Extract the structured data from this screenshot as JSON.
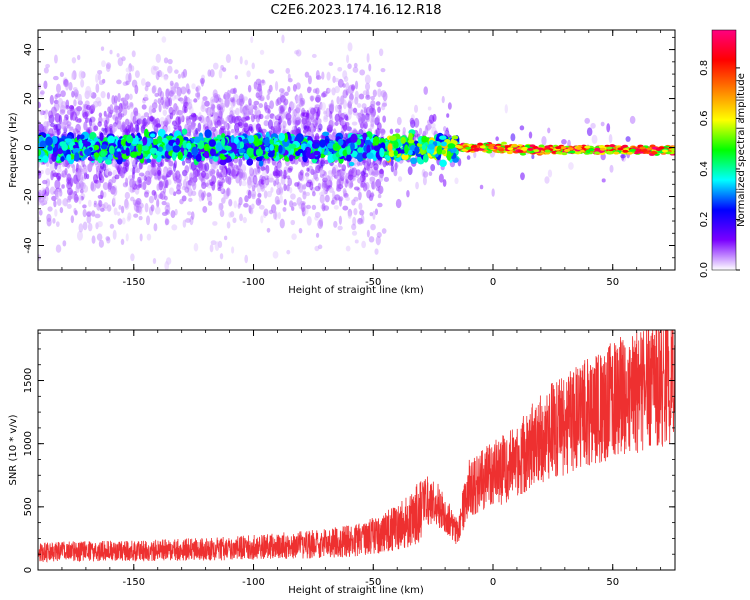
{
  "title": "C2E6.2023.174.16.12.R18",
  "chart_data": [
    {
      "type": "heatmap",
      "xlabel": "Height of straight line (km)",
      "ylabel": "Frequency (Hz)",
      "xlim": [
        -190,
        76
      ],
      "ylim": [
        -50,
        48
      ],
      "xticks": [
        -150,
        -100,
        -50,
        0,
        50
      ],
      "yticks": [
        -40,
        -20,
        0,
        20,
        40
      ],
      "grid": false,
      "colorbar": {
        "label": "Normalized spectral amplitude",
        "ticks": [
          0.0,
          0.2,
          0.4,
          0.6,
          0.8
        ],
        "range": [
          0,
          0.95
        ],
        "colormap": [
          "#ffffff",
          "#7a00ff",
          "#0000ff",
          "#00ffff",
          "#00ff00",
          "#ffff00",
          "#ff8000",
          "#ff0000",
          "#ff0080"
        ]
      },
      "description_series": [
        {
          "name": "",
          "x": [
            -190,
            -150,
            -100,
            -50,
            -20,
            0,
            20,
            50,
            76
          ],
          "band_center_hz": [
            0,
            0,
            0,
            0,
            0,
            0,
            -1,
            -1,
            -1
          ]
        }
      ]
    },
    {
      "type": "line",
      "xlabel": "Height of straight line (km)",
      "ylabel": "SNR (10 * v/v)",
      "xlim": [
        -190,
        76
      ],
      "ylim": [
        0,
        1900
      ],
      "xticks": [
        -150,
        -100,
        -50,
        0,
        50
      ],
      "yticks": [
        0,
        500,
        1000,
        1500
      ],
      "grid": false,
      "color": "#ee3030",
      "series": [
        {
          "name": "",
          "x": [
            -190,
            -170,
            -150,
            -130,
            -110,
            -90,
            -70,
            -55,
            -45,
            -35,
            -28,
            -22,
            -15,
            -10,
            -5,
            0,
            10,
            20,
            30,
            40,
            50,
            60,
            70,
            76
          ],
          "y": [
            140,
            150,
            150,
            160,
            170,
            190,
            210,
            240,
            300,
            380,
            560,
            500,
            300,
            650,
            700,
            760,
            860,
            1050,
            1150,
            1250,
            1350,
            1400,
            1480,
            1500
          ]
        }
      ]
    }
  ]
}
